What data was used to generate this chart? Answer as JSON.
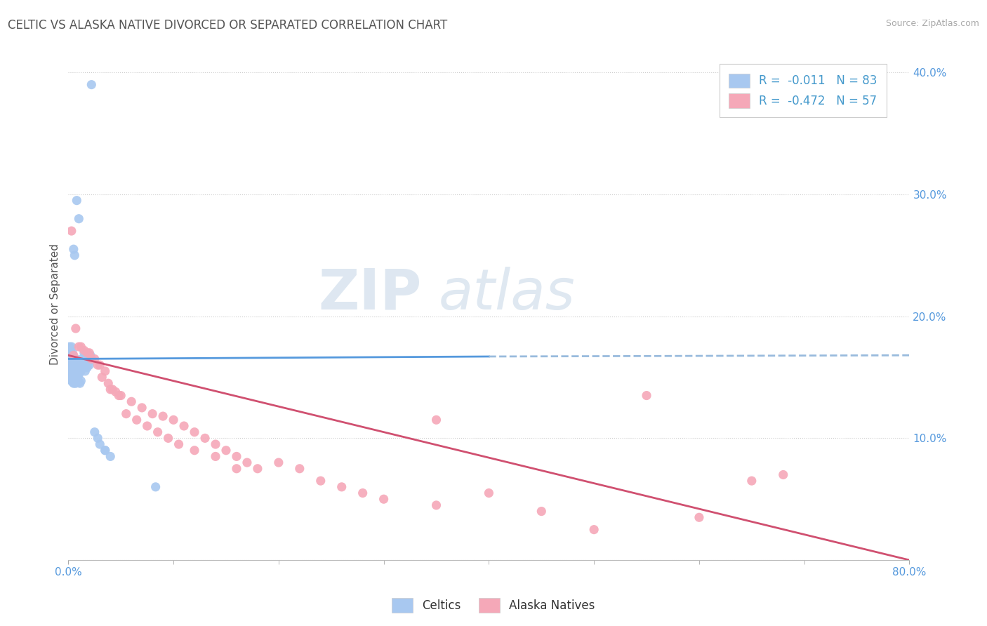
{
  "title": "CELTIC VS ALASKA NATIVE DIVORCED OR SEPARATED CORRELATION CHART",
  "source": "Source: ZipAtlas.com",
  "ylabel": "Divorced or Separated",
  "legend_label1": "R =  -0.011   N = 83",
  "legend_label2": "R =  -0.472   N = 57",
  "legend_label_celtics": "Celtics",
  "legend_label_alaska": "Alaska Natives",
  "R1": -0.011,
  "N1": 83,
  "R2": -0.472,
  "N2": 57,
  "color_celtic": "#a8c8f0",
  "color_alaska": "#f5a8b8",
  "color_trend_celtic": "#5599dd",
  "color_trend_alaska": "#d05070",
  "color_trend_celtic_dashed": "#99bbdd",
  "background_color": "#ffffff",
  "watermark_zip": "ZIP",
  "watermark_atlas": "atlas",
  "xmin": 0.0,
  "xmax": 0.8,
  "ymin": 0.0,
  "ymax": 0.42,
  "ytick_vals": [
    0.0,
    0.1,
    0.2,
    0.3,
    0.4
  ],
  "celtic_x": [
    0.022,
    0.008,
    0.01,
    0.005,
    0.006,
    0.003,
    0.004,
    0.007,
    0.009,
    0.011,
    0.013,
    0.015,
    0.017,
    0.019,
    0.021,
    0.003,
    0.004,
    0.005,
    0.006,
    0.007,
    0.008,
    0.009,
    0.01,
    0.011,
    0.002,
    0.003,
    0.004,
    0.005,
    0.006,
    0.007,
    0.001,
    0.002,
    0.003,
    0.004,
    0.005,
    0.001,
    0.002,
    0.003,
    0.002,
    0.001,
    0.001,
    0.002,
    0.002,
    0.003,
    0.003,
    0.004,
    0.004,
    0.005,
    0.005,
    0.006,
    0.006,
    0.007,
    0.008,
    0.009,
    0.01,
    0.012,
    0.014,
    0.016,
    0.018,
    0.02,
    0.025,
    0.03,
    0.035,
    0.04,
    0.001,
    0.001,
    0.002,
    0.002,
    0.003,
    0.003,
    0.004,
    0.004,
    0.005,
    0.006,
    0.007,
    0.008,
    0.009,
    0.01,
    0.011,
    0.012,
    0.083,
    0.035,
    0.028
  ],
  "celtic_y": [
    0.39,
    0.295,
    0.28,
    0.255,
    0.25,
    0.175,
    0.17,
    0.165,
    0.163,
    0.16,
    0.165,
    0.17,
    0.165,
    0.162,
    0.168,
    0.155,
    0.153,
    0.15,
    0.148,
    0.152,
    0.157,
    0.155,
    0.16,
    0.158,
    0.17,
    0.168,
    0.165,
    0.163,
    0.16,
    0.158,
    0.172,
    0.17,
    0.168,
    0.165,
    0.163,
    0.16,
    0.158,
    0.155,
    0.152,
    0.15,
    0.148,
    0.155,
    0.152,
    0.15,
    0.148,
    0.147,
    0.146,
    0.145,
    0.147,
    0.148,
    0.146,
    0.145,
    0.148,
    0.15,
    0.152,
    0.155,
    0.158,
    0.155,
    0.158,
    0.16,
    0.105,
    0.095,
    0.09,
    0.085,
    0.175,
    0.173,
    0.172,
    0.17,
    0.168,
    0.165,
    0.163,
    0.16,
    0.155,
    0.152,
    0.15,
    0.148,
    0.147,
    0.146,
    0.145,
    0.147,
    0.06,
    0.09,
    0.1
  ],
  "alaska_x": [
    0.005,
    0.01,
    0.015,
    0.02,
    0.025,
    0.03,
    0.035,
    0.04,
    0.045,
    0.05,
    0.06,
    0.07,
    0.08,
    0.09,
    0.1,
    0.11,
    0.12,
    0.13,
    0.14,
    0.15,
    0.16,
    0.17,
    0.18,
    0.2,
    0.22,
    0.24,
    0.26,
    0.28,
    0.3,
    0.35,
    0.4,
    0.45,
    0.5,
    0.6,
    0.65,
    0.003,
    0.007,
    0.012,
    0.018,
    0.022,
    0.028,
    0.032,
    0.038,
    0.042,
    0.048,
    0.055,
    0.065,
    0.075,
    0.085,
    0.095,
    0.105,
    0.12,
    0.14,
    0.16,
    0.35,
    0.55,
    0.68
  ],
  "alaska_y": [
    0.168,
    0.175,
    0.172,
    0.17,
    0.165,
    0.16,
    0.155,
    0.14,
    0.138,
    0.135,
    0.13,
    0.125,
    0.12,
    0.118,
    0.115,
    0.11,
    0.105,
    0.1,
    0.095,
    0.09,
    0.085,
    0.08,
    0.075,
    0.08,
    0.075,
    0.065,
    0.06,
    0.055,
    0.05,
    0.045,
    0.055,
    0.04,
    0.025,
    0.035,
    0.065,
    0.27,
    0.19,
    0.175,
    0.17,
    0.165,
    0.16,
    0.15,
    0.145,
    0.14,
    0.135,
    0.12,
    0.115,
    0.11,
    0.105,
    0.1,
    0.095,
    0.09,
    0.085,
    0.075,
    0.115,
    0.135,
    0.07
  ]
}
